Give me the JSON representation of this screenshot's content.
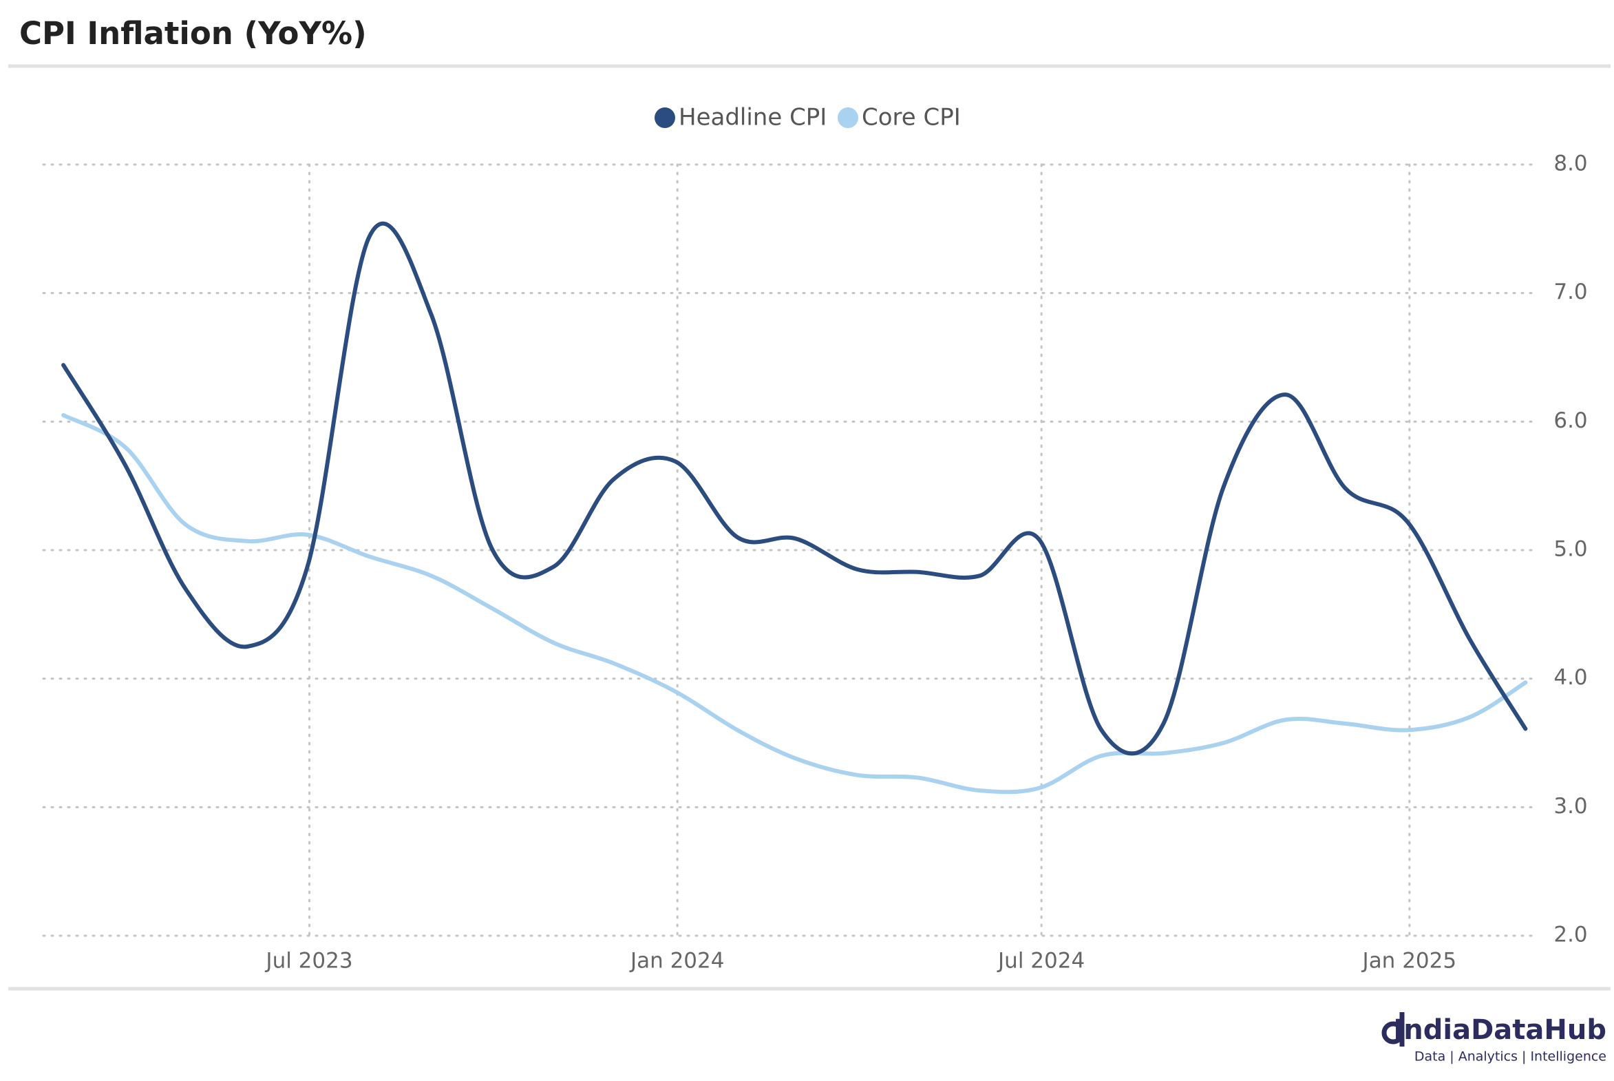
{
  "chart_data": {
    "type": "line",
    "title": "CPI Inflation (YoY%)",
    "x": [
      "2023-02-28",
      "2023-03-31",
      "2023-04-30",
      "2023-05-31",
      "2023-06-30",
      "2023-07-31",
      "2023-08-31",
      "2023-09-30",
      "2023-10-31",
      "2023-11-30",
      "2023-12-31",
      "2024-01-31",
      "2024-02-29",
      "2024-03-31",
      "2024-04-30",
      "2024-05-31",
      "2024-06-30",
      "2024-07-31",
      "2024-08-31",
      "2024-09-30",
      "2024-10-31",
      "2024-11-30",
      "2024-12-31",
      "2025-01-31",
      "2025-02-28"
    ],
    "series": [
      {
        "name": "Headline CPI",
        "color": "#2b4c7e",
        "values": [
          6.44,
          5.66,
          4.7,
          4.25,
          4.87,
          7.44,
          6.83,
          5.02,
          4.87,
          5.55,
          5.69,
          5.1,
          5.09,
          4.85,
          4.83,
          4.8,
          5.08,
          3.6,
          3.65,
          5.49,
          6.21,
          5.48,
          5.22,
          4.31,
          3.61
        ]
      },
      {
        "name": "Core CPI",
        "color": "#a9d1f0",
        "values": [
          6.05,
          5.8,
          5.2,
          5.07,
          5.12,
          4.95,
          4.8,
          4.55,
          4.28,
          4.12,
          3.9,
          3.6,
          3.38,
          3.25,
          3.23,
          3.13,
          3.15,
          3.4,
          3.42,
          3.5,
          3.68,
          3.65,
          3.6,
          3.7,
          3.97
        ]
      }
    ],
    "xlim": [
      "2023-02-18",
      "2025-03-04"
    ],
    "xticks": [
      {
        "value": "2023-07-01",
        "label": "Jul 2023"
      },
      {
        "value": "2024-01-01",
        "label": "Jan 2024"
      },
      {
        "value": "2024-07-01",
        "label": "Jul 2024"
      },
      {
        "value": "2025-01-01",
        "label": "Jan 2025"
      }
    ],
    "ylim": [
      2,
      8
    ],
    "yticks": [
      {
        "value": 2,
        "label": "2.0"
      },
      {
        "value": 3,
        "label": "3.0"
      },
      {
        "value": 4,
        "label": "4.0"
      },
      {
        "value": 5,
        "label": "5.0"
      },
      {
        "value": 6,
        "label": "6.0"
      },
      {
        "value": 7,
        "label": "7.0"
      },
      {
        "value": 8,
        "label": "8.0"
      }
    ],
    "grid": true,
    "legend": "top",
    "brand": "IndiaDataHub",
    "tagline": "Data | Analytics | Intelligence"
  }
}
